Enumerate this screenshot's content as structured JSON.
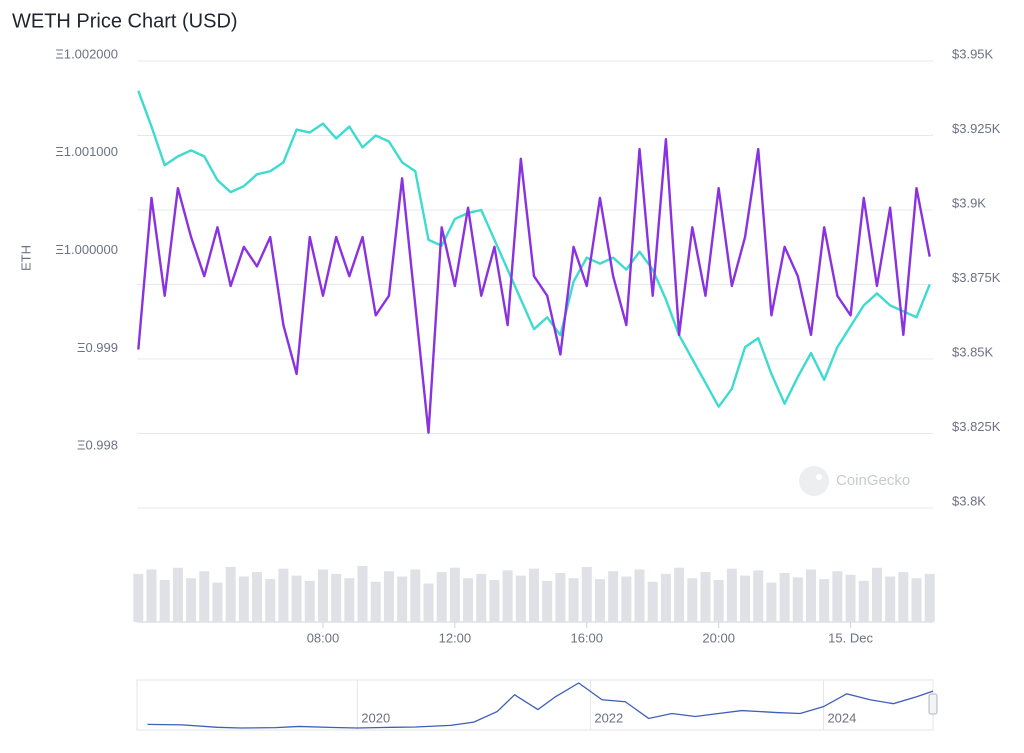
{
  "chart_data": {
    "type": "line",
    "title": "WETH Price Chart (USD)",
    "y_label": "ETH",
    "x": [
      2.4,
      2.8,
      3.2,
      3.6,
      4.0,
      4.4,
      4.8,
      5.2,
      5.6,
      6.0,
      6.4,
      6.8,
      7.2,
      7.6,
      8.0,
      8.4,
      8.8,
      9.2,
      9.6,
      10.0,
      10.4,
      10.8,
      11.2,
      11.6,
      12.0,
      12.4,
      12.8,
      13.2,
      13.6,
      14.0,
      14.4,
      14.8,
      15.2,
      15.6,
      16.0,
      16.4,
      16.8,
      17.2,
      17.6,
      18.0,
      18.4,
      18.8,
      19.2,
      19.6,
      20.0,
      20.4,
      20.8,
      21.2,
      21.6,
      22.0,
      22.4,
      22.8,
      23.2,
      23.6,
      24.0,
      24.4,
      24.8,
      25.2,
      25.6,
      26.0,
      26.4
    ],
    "xlim": [
      2.36,
      26.5
    ],
    "xticks": [
      {
        "value": 8,
        "label": "08:00"
      },
      {
        "value": 12,
        "label": "12:00"
      },
      {
        "value": 16,
        "label": "16:00"
      },
      {
        "value": 20,
        "label": "20:00"
      },
      {
        "value": 24,
        "label": "15. Dec"
      }
    ],
    "ylim": [
      0.99743,
      1.002
    ],
    "yticks": [
      {
        "value": 1.002,
        "label": "Ξ1.002000"
      },
      {
        "value": 1.001,
        "label": "Ξ1.001000"
      },
      {
        "value": 1,
        "label": "Ξ1.000000"
      },
      {
        "value": 0.999,
        "label": "Ξ0.999"
      },
      {
        "value": 0.998,
        "label": "Ξ0.998"
      }
    ],
    "y2lim": [
      3800,
      3950
    ],
    "y2ticks": [
      {
        "value": 3950,
        "label": "$3.95K"
      },
      {
        "value": 3925,
        "label": "$3.925K"
      },
      {
        "value": 3900,
        "label": "$3.9K"
      },
      {
        "value": 3875,
        "label": "$3.875K"
      },
      {
        "value": 3850,
        "label": "$3.85K"
      },
      {
        "value": 3825,
        "label": "$3.825K"
      },
      {
        "value": 3800,
        "label": "$3.8K"
      }
    ],
    "grid": true,
    "watermark": "CoinGecko",
    "series": [
      {
        "color": "#3ddbd0",
        "axis": "y2",
        "values": [
          3940,
          3928,
          3915,
          3918,
          3920,
          3918,
          3910,
          3906,
          3908,
          3912,
          3913,
          3916,
          3927,
          3926,
          3929,
          3924,
          3928,
          3921,
          3925,
          3923,
          3916,
          3913,
          3890,
          3888,
          3897,
          3899,
          3900,
          3890,
          3880,
          3870,
          3860,
          3864,
          3858,
          3876,
          3884,
          3882,
          3884,
          3880,
          3886,
          3880,
          3870,
          3858,
          3850,
          3842,
          3834,
          3840,
          3854,
          3857,
          3845,
          3835,
          3844,
          3852,
          3843,
          3854,
          3861,
          3868,
          3872,
          3868,
          3866,
          3864,
          3875
        ]
      },
      {
        "color": "#8a32e0",
        "axis": "y",
        "values": [
          0.99905,
          1.0006,
          0.9996,
          1.0007,
          1.0002,
          0.9998,
          1.0003,
          0.9997,
          1.0001,
          0.9999,
          1.0002,
          0.9993,
          0.9988,
          1.0002,
          0.9996,
          1.0002,
          0.9998,
          1.0002,
          0.9994,
          0.9996,
          1.0008,
          0.9995,
          0.9982,
          1.0003,
          0.9997,
          1.0005,
          0.9996,
          1.0001,
          0.9993,
          1.001,
          0.9998,
          0.9996,
          0.999,
          1.0001,
          0.9997,
          1.0006,
          0.9998,
          0.9993,
          1.0011,
          0.9996,
          1.0012,
          0.9992,
          1.0003,
          0.9996,
          1.0007,
          0.9997,
          1.0002,
          1.0011,
          0.9994,
          1.0001,
          0.9998,
          0.9992,
          1.0003,
          0.9996,
          0.9994,
          1.0006,
          0.9997,
          1.0005,
          0.9992,
          1.0007,
          1.0
        ]
      }
    ],
    "volume": {
      "color": "#dfe1e6",
      "values": [
        55,
        60,
        48,
        62,
        50,
        58,
        45,
        63,
        52,
        57,
        49,
        61,
        53,
        47,
        60,
        55,
        50,
        64,
        46,
        58,
        52,
        60,
        44,
        57,
        62,
        50,
        55,
        48,
        59,
        53,
        61,
        47,
        56,
        50,
        63,
        49,
        58,
        52,
        60,
        46,
        55,
        62,
        50,
        57,
        48,
        61,
        53,
        59,
        45,
        56,
        51,
        60,
        49,
        58,
        54,
        47,
        62,
        52,
        57,
        50,
        55
      ]
    },
    "navigator": {
      "color": "#3d5fb8",
      "x": [
        2018.2,
        2018.5,
        2018.8,
        2019.0,
        2019.3,
        2019.5,
        2019.8,
        2020.0,
        2020.3,
        2020.5,
        2020.8,
        2021.0,
        2021.2,
        2021.35,
        2021.55,
        2021.7,
        2021.9,
        2022.1,
        2022.3,
        2022.5,
        2022.7,
        2022.9,
        2023.1,
        2023.3,
        2023.6,
        2023.8,
        2024.0,
        2024.2,
        2024.4,
        2024.6,
        2024.8,
        2024.94
      ],
      "values": [
        500,
        450,
        200,
        130,
        170,
        290,
        180,
        130,
        200,
        230,
        400,
        730,
        1800,
        3500,
        2000,
        3300,
        4700,
        3000,
        2800,
        1100,
        1600,
        1300,
        1600,
        1900,
        1700,
        1600,
        2300,
        3600,
        3000,
        2600,
        3300,
        3880
      ],
      "xlim": [
        2018.11,
        2024.94
      ],
      "xticks": [
        2020,
        2022,
        2024
      ]
    }
  }
}
